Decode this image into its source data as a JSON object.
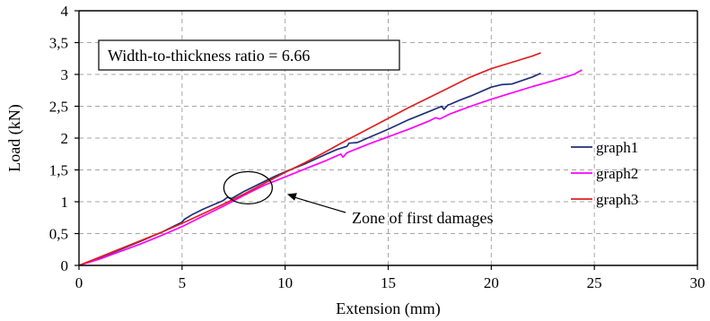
{
  "chart_data": {
    "type": "line",
    "title": "",
    "xlabel": "Extension (mm)",
    "ylabel": "Load (kN)",
    "xlim": [
      0,
      30
    ],
    "ylim": [
      0,
      4
    ],
    "x_ticks": [
      0,
      5,
      10,
      15,
      20,
      25,
      30
    ],
    "y_ticks": [
      0,
      0.5,
      1,
      1.5,
      2,
      2.5,
      3,
      3.5,
      4
    ],
    "x_tick_labels": [
      "0",
      "5",
      "10",
      "15",
      "20",
      "25",
      "30"
    ],
    "y_tick_labels": [
      "0",
      "0,5",
      "1",
      "1,5",
      "2",
      "2,5",
      "3",
      "3,5",
      "4"
    ],
    "grid": "dashed",
    "legend_position": "right",
    "text_box": "Width-to-thickness ratio = 6.66",
    "annotation": {
      "text": "Zone of first damages",
      "ellipse_center": [
        8.2,
        1.22
      ],
      "arrow_target": [
        10.1,
        1.12
      ]
    },
    "series": [
      {
        "name": "graph1",
        "color": "#1f2f7a",
        "x": [
          0,
          1,
          2,
          3,
          4,
          5,
          5.1,
          5.5,
          6,
          7,
          7.2,
          7.4,
          8,
          9,
          9.5,
          10,
          11,
          12,
          12.5,
          13,
          13.1,
          13.5,
          14,
          15,
          16,
          17,
          17.6,
          17.7,
          17.9,
          18,
          18.5,
          19,
          20,
          20.5,
          21,
          22,
          22.4
        ],
        "y": [
          0,
          0.12,
          0.25,
          0.38,
          0.52,
          0.68,
          0.72,
          0.8,
          0.88,
          1.02,
          1.07,
          1.05,
          1.16,
          1.32,
          1.4,
          1.47,
          1.6,
          1.75,
          1.82,
          1.87,
          1.92,
          1.93,
          2.0,
          2.14,
          2.29,
          2.42,
          2.5,
          2.45,
          2.52,
          2.53,
          2.6,
          2.66,
          2.8,
          2.84,
          2.85,
          2.96,
          3.02
        ]
      },
      {
        "name": "graph2",
        "color": "#ff00ff",
        "x": [
          0,
          1,
          2,
          3,
          4,
          5,
          6,
          7,
          8,
          9,
          10,
          11,
          12,
          12.7,
          12.8,
          13,
          14,
          15,
          16,
          17,
          17.3,
          17.5,
          18,
          19,
          20,
          21,
          22,
          23,
          24,
          24.4
        ],
        "y": [
          0,
          0.1,
          0.22,
          0.34,
          0.47,
          0.61,
          0.77,
          0.93,
          1.1,
          1.26,
          1.39,
          1.52,
          1.65,
          1.75,
          1.7,
          1.77,
          1.9,
          2.02,
          2.14,
          2.27,
          2.32,
          2.3,
          2.38,
          2.5,
          2.61,
          2.71,
          2.81,
          2.9,
          3.0,
          3.07
        ]
      },
      {
        "name": "graph3",
        "color": "#e02020",
        "x": [
          0,
          1,
          2,
          3,
          4,
          5,
          6,
          7,
          8,
          9,
          10,
          11,
          12,
          13,
          14,
          15,
          16,
          17,
          18,
          19,
          20,
          21,
          22,
          22.4
        ],
        "y": [
          0,
          0.13,
          0.26,
          0.39,
          0.52,
          0.66,
          0.81,
          0.96,
          1.12,
          1.29,
          1.46,
          1.62,
          1.79,
          1.97,
          2.14,
          2.31,
          2.48,
          2.64,
          2.8,
          2.96,
          3.09,
          3.19,
          3.29,
          3.34
        ]
      }
    ]
  }
}
